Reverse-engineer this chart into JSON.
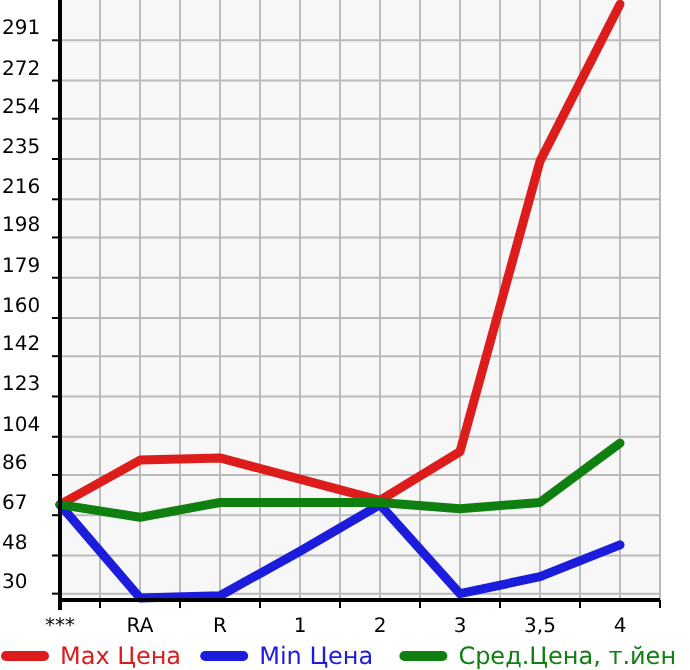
{
  "chart_data": {
    "type": "line",
    "categories": [
      "***",
      "RA",
      "R",
      "1",
      "2",
      "3",
      "3,5",
      "4"
    ],
    "series": [
      {
        "name": "Max Цена",
        "color": "#dd1c1c",
        "values": [
          72,
          93,
          94,
          84,
          74,
          97,
          234,
          308
        ]
      },
      {
        "name": "Min Цена",
        "color": "#1c1cdd",
        "values": [
          72,
          28,
          29,
          50,
          72,
          30,
          38,
          53
        ]
      },
      {
        "name": "Сред.Цена, т.йен",
        "color": "#0f7f0f",
        "values": [
          72,
          66,
          73,
          73,
          73,
          70,
          73,
          101
        ]
      }
    ],
    "ylim": [
      27,
      310
    ],
    "yticks": [
      30,
      48,
      67,
      86,
      104,
      123,
      142,
      160,
      179,
      198,
      216,
      235,
      254,
      272,
      291
    ],
    "grid": true,
    "legend": "bottom",
    "marker": "none",
    "line_style": "solid"
  }
}
